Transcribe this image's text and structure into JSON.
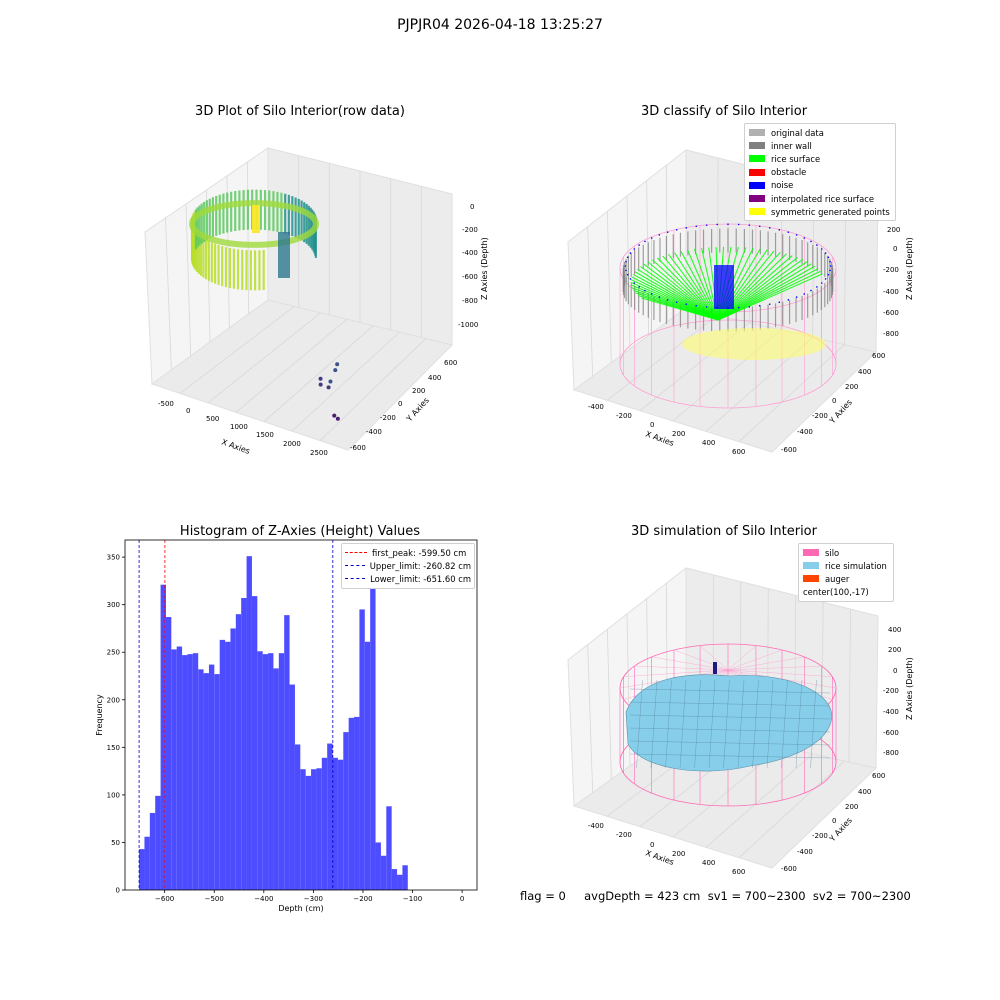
{
  "suptitle": "PJPJR04 2026-04-18 13:25:27",
  "footer": "flag = 0     avgDepth = 423 cm  sv1 = 700~2300  sv2 = 700~2300",
  "chart_data": [
    {
      "type": "scatter",
      "title": "3D Plot of Silo Interior(row data)",
      "xlabel": "X Axies",
      "ylabel": "Y Axies",
      "zlabel": "Z Axies (Depth)",
      "x_ticks": [
        "-500",
        "0",
        "500",
        "1000",
        "1500",
        "2000",
        "2500"
      ],
      "y_ticks": [
        "600",
        "400",
        "200",
        "0",
        "-200",
        "-400",
        "-600"
      ],
      "z_ticks": [
        "0",
        "-200",
        "-400",
        "-600",
        "-800",
        "-1000"
      ],
      "outlier_points": [
        {
          "x": 1750,
          "y": 100,
          "z": -1000
        },
        {
          "x": 1780,
          "y": 60,
          "z": -1020
        },
        {
          "x": 1820,
          "y": -20,
          "z": -1060
        },
        {
          "x": 1600,
          "y": 0,
          "z": -1080
        },
        {
          "x": 1700,
          "y": -60,
          "z": -1080
        },
        {
          "x": 1850,
          "y": -60,
          "z": -1080
        },
        {
          "x": 2350,
          "y": -300,
          "z": -1100
        },
        {
          "x": 2450,
          "y": -320,
          "z": -1100
        }
      ]
    },
    {
      "type": "scatter",
      "title": "3D classify of Silo Interior",
      "xlabel": "X Axies",
      "ylabel": "Y Axies",
      "zlabel": "Z Axies (Depth)",
      "x_ticks": [
        "-400",
        "-200",
        "0",
        "200",
        "400",
        "600"
      ],
      "y_ticks": [
        "600",
        "400",
        "200",
        "0",
        "-200",
        "-400",
        "-600"
      ],
      "z_ticks": [
        "200",
        "0",
        "-200",
        "-400",
        "-600",
        "-800"
      ],
      "legend": [
        {
          "label": "original data",
          "color": "#b0b0b0"
        },
        {
          "label": "inner wall",
          "color": "#808080"
        },
        {
          "label": "rice surface",
          "color": "#00ff00"
        },
        {
          "label": "obstacle",
          "color": "#ff0000"
        },
        {
          "label": "noise",
          "color": "#0000ff"
        },
        {
          "label": "interpolated rice surface",
          "color": "#800080"
        },
        {
          "label": "symmetric generated points",
          "color": "#ffff00"
        }
      ]
    },
    {
      "type": "bar",
      "title": "Histogram of Z-Axies (Height) Values",
      "xlabel": "Depth (cm)",
      "ylabel": "Frequency",
      "xlim": [
        -680,
        30
      ],
      "ylim": [
        0,
        368
      ],
      "x_ticks": [
        -600,
        -500,
        -400,
        -300,
        -200,
        -100,
        0
      ],
      "y_ticks": [
        0,
        50,
        100,
        150,
        200,
        250,
        300,
        350
      ],
      "bin_start": -651.6,
      "bin_width": 10.84,
      "values": [
        43,
        56,
        81,
        99,
        321,
        287,
        253,
        256,
        247,
        248,
        249,
        232,
        228,
        237,
        227,
        263,
        261,
        275,
        290,
        307,
        351,
        309,
        251,
        248,
        249,
        233,
        249,
        289,
        216,
        153,
        127,
        120,
        127,
        128,
        139,
        154,
        139,
        137,
        166,
        181,
        182,
        295,
        261,
        340,
        50,
        36,
        88,
        22,
        16,
        26
      ],
      "bar_color": "#4d4dff",
      "vlines": [
        {
          "label": "first_peak: -599.50 cm",
          "x": -599.5,
          "color": "#ff0000"
        },
        {
          "label": "Upper_limit: -260.82 cm",
          "x": -260.82,
          "color": "#0000cc"
        },
        {
          "label": "Lower_limit: -651.60 cm",
          "x": -651.6,
          "color": "#0000cc"
        }
      ]
    },
    {
      "type": "surface",
      "title": "3D simulation of Silo Interior",
      "xlabel": "X Axies",
      "ylabel": "Y Axies",
      "zlabel": "Z Axies (Depth)",
      "x_ticks": [
        "-400",
        "-200",
        "0",
        "200",
        "400",
        "600"
      ],
      "y_ticks": [
        "600",
        "400",
        "200",
        "0",
        "-200",
        "-400",
        "-600"
      ],
      "z_ticks": [
        "400",
        "200",
        "0",
        "-200",
        "-400",
        "-600",
        "-800"
      ],
      "legend": [
        {
          "label": "silo",
          "color": "#ff69b4"
        },
        {
          "label": "rice simulation",
          "color": "#87ceeb"
        },
        {
          "label": "auger",
          "color": "#ff4500"
        },
        {
          "label": "center(100,-17)",
          "color": ""
        }
      ]
    }
  ]
}
